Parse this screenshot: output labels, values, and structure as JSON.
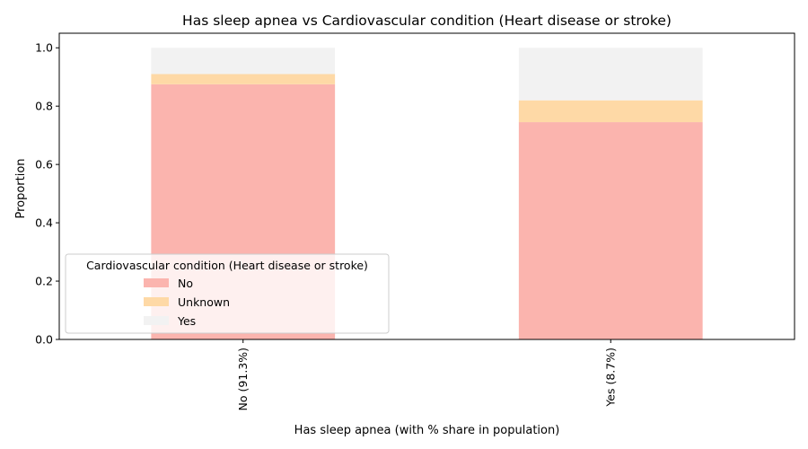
{
  "chart_data": {
    "type": "bar",
    "stacked": true,
    "title": "Has sleep apnea vs Cardiovascular condition (Heart disease or stroke)",
    "xlabel": "Has sleep apnea (with % share in population)",
    "ylabel": "Proportion",
    "ylim": [
      0,
      1.05
    ],
    "yticks": [
      "0.0",
      "0.2",
      "0.4",
      "0.6",
      "0.8",
      "1.0"
    ],
    "categories": [
      "No (91.3%)",
      "Yes (8.7%)"
    ],
    "series": [
      {
        "name": "No",
        "values": [
          0.875,
          0.745
        ],
        "color": "#fbb4ae"
      },
      {
        "name": "Unknown",
        "values": [
          0.035,
          0.075
        ],
        "color": "#fed9a6"
      },
      {
        "name": "Yes",
        "values": [
          0.09,
          0.18
        ],
        "color": "#f2f2f2"
      }
    ],
    "legend": {
      "title": "Cardiovascular condition (Heart disease or stroke)",
      "placement": "lower-left"
    },
    "grid": false
  }
}
